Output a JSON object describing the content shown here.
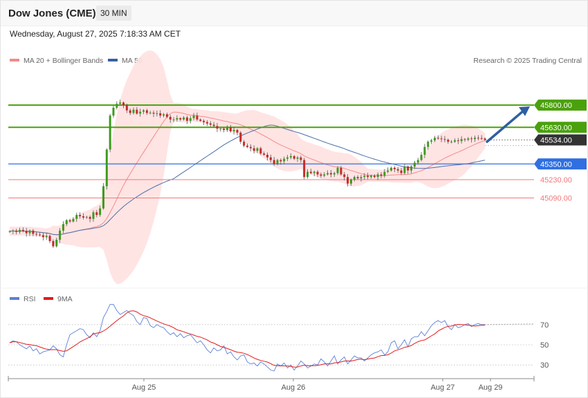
{
  "header": {
    "title": "Dow Jones (CME)",
    "timeframe": "30 MIN",
    "datetime": "Wednesday, August 27, 2025 7:18:33 AM CET"
  },
  "legend": {
    "ma20": "MA 20 + Bollinger Bands",
    "ma50": "MA 50",
    "rsi": "RSI",
    "rsi_ma": "9MA",
    "credit": "Research © 2025 Trading Central"
  },
  "colors": {
    "up": "#3d9a1d",
    "down": "#c62828",
    "ma20": "#f48a8a",
    "ma50": "#4a6fa8",
    "band": "#ffe3e3",
    "resistance": "#4aa10c",
    "support_blue": "#2f6fe0",
    "support_red": "#f07878",
    "current": "#333333",
    "rsi": "#5b7fd6",
    "rsi_ma": "#e01b1b",
    "arrow": "#2e5fa1"
  },
  "chart_data": [
    {
      "type": "candlestick",
      "title": "",
      "ylim": [
        44400,
        46250
      ],
      "x_ticks": [
        "Aug 25",
        "Aug 26",
        "Aug 27",
        "Aug 29"
      ],
      "levels": [
        {
          "name": "resistance-2",
          "value": 45800,
          "label": "45800.00",
          "kind": "resistance"
        },
        {
          "name": "resistance-1",
          "value": 45630,
          "label": "45630.00",
          "kind": "resistance"
        },
        {
          "name": "current-price",
          "value": 45534,
          "label": "45534.00",
          "kind": "current"
        },
        {
          "name": "pivot",
          "value": 45350,
          "label": "45350.00",
          "kind": "pivot"
        },
        {
          "name": "support-1",
          "value": 45230,
          "label": "45230.00",
          "kind": "support"
        },
        {
          "name": "support-2",
          "value": 45090,
          "label": "45090.00",
          "kind": "support"
        }
      ],
      "projection": {
        "from": 45520,
        "to": 45790
      },
      "closes": [
        44835,
        44840,
        44830,
        44845,
        44838,
        44820,
        44840,
        44815,
        44810,
        44805,
        44790,
        44800,
        44760,
        44720,
        44770,
        44840,
        44890,
        44920,
        44910,
        44930,
        44960,
        44950,
        44940,
        44945,
        44930,
        44980,
        44960,
        45010,
        45180,
        45460,
        45720,
        45780,
        45810,
        45820,
        45800,
        45760,
        45740,
        45765,
        45735,
        45750,
        45760,
        45740,
        45742,
        45735,
        45738,
        45720,
        45730,
        45710,
        45690,
        45690,
        45700,
        45690,
        45705,
        45680,
        45700,
        45720,
        45690,
        45680,
        45670,
        45660,
        45650,
        45640,
        45620,
        45620,
        45610,
        45630,
        45600,
        45610,
        45590,
        45520,
        45490,
        45480,
        45470,
        45450,
        45470,
        45430,
        45420,
        45400,
        45380,
        45350,
        45380,
        45370,
        45390,
        45400,
        45410,
        45390,
        45400,
        45380,
        45250,
        45290,
        45280,
        45290,
        45270,
        45260,
        45270,
        45280,
        45270,
        45280,
        45320,
        45270,
        45250,
        45200,
        45230,
        45250,
        45240,
        45250,
        45260,
        45250,
        45260,
        45250,
        45270,
        45260,
        45290,
        45300,
        45320,
        45310,
        45300,
        45280,
        45330,
        45300,
        45330,
        45360,
        45380,
        45420,
        45480,
        45520,
        45530,
        45550,
        45545,
        45540,
        45535,
        45520,
        45520,
        45530,
        45525,
        45540,
        45535,
        45545,
        45540,
        45550,
        45548,
        45545,
        45534
      ],
      "rsi": {
        "ylim": [
          0,
          100
        ],
        "ticks": [
          70,
          50,
          30
        ],
        "values": [
          52,
          54,
          53,
          50,
          48,
          46,
          49,
          44,
          46,
          41,
          43,
          44,
          45,
          49,
          46,
          40,
          38,
          50,
          60,
          62,
          64,
          66,
          65,
          60,
          57,
          62,
          58,
          64,
          77,
          83,
          90,
          90,
          84,
          80,
          82,
          84,
          81,
          79,
          73,
          70,
          77,
          76,
          69,
          67,
          70,
          68,
          67,
          63,
          60,
          62,
          58,
          61,
          57,
          59,
          60,
          56,
          52,
          54,
          50,
          45,
          42,
          47,
          44,
          45,
          49,
          41,
          43,
          38,
          35,
          39,
          40,
          33,
          31,
          32,
          29,
          33,
          31,
          28,
          25,
          24,
          31,
          29,
          32,
          27,
          30,
          25,
          29,
          34,
          31,
          27,
          29,
          31,
          30,
          36,
          33,
          29,
          34,
          39,
          31,
          35,
          38,
          31,
          35,
          39,
          37,
          37,
          34,
          37,
          40,
          42,
          43,
          45,
          40,
          43,
          52,
          54,
          46,
          50,
          55,
          48,
          56,
          58,
          58,
          63,
          59,
          64,
          69,
          72,
          74,
          72,
          74,
          68,
          65,
          70,
          67,
          68,
          70,
          71,
          68,
          70,
          71,
          70,
          70
        ]
      }
    }
  ]
}
